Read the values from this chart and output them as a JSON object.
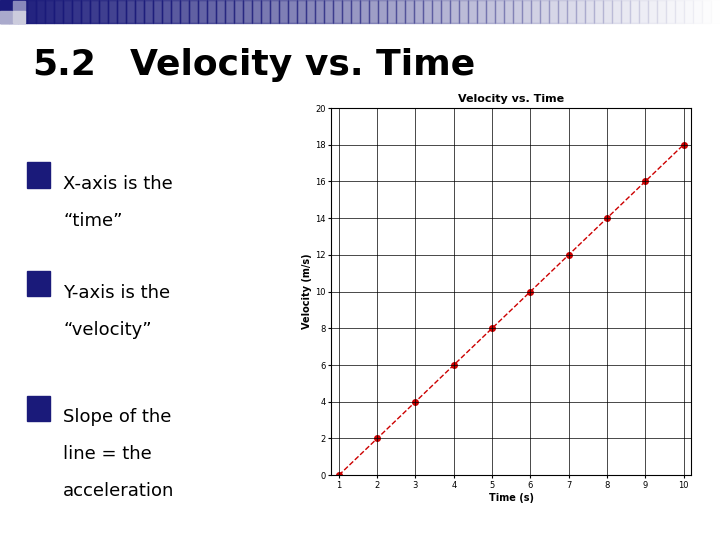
{
  "slide_title_num": "5.2",
  "slide_title_text": "Velocity vs. Time",
  "header_dark": "#1a1a7a",
  "header_mid": "#5566aa",
  "bullet_lines": [
    [
      "X-axis is the",
      "“time”"
    ],
    [
      "Y-axis is the",
      "“velocity”"
    ],
    [
      "Slope of the",
      "line = the",
      "acceleration"
    ]
  ],
  "bullet_color": "#1a1a7a",
  "text_color": "#000000",
  "chart_title": "Velocity vs. Time",
  "xlabel": "Time (s)",
  "ylabel": "Velocity (m/s)",
  "time_data": [
    1,
    2,
    3,
    4,
    5,
    6,
    7,
    8,
    9,
    10
  ],
  "velocity_data": [
    0,
    2,
    4,
    6,
    8,
    10,
    12,
    14,
    16,
    18
  ],
  "xlim": [
    1,
    10
  ],
  "ylim": [
    0,
    20
  ],
  "xticks": [
    1,
    2,
    3,
    4,
    5,
    6,
    7,
    8,
    9,
    10
  ],
  "yticks": [
    0,
    2,
    4,
    6,
    8,
    10,
    12,
    14,
    16,
    18,
    20
  ],
  "line_color": "#cc0000",
  "marker_color": "#cc0000",
  "marker_style": "o",
  "marker_size": 4,
  "line_style": "--",
  "line_width": 1.0
}
